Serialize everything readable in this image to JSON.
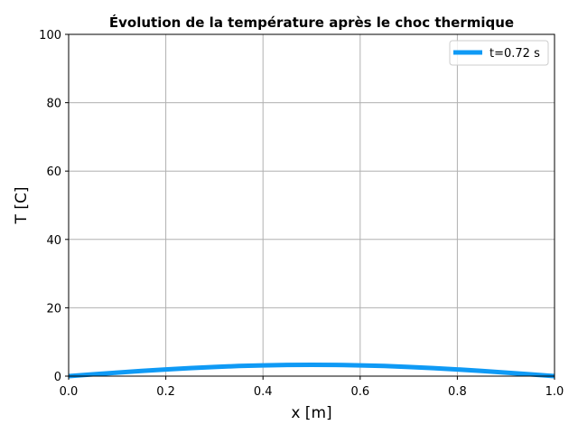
{
  "chart_data": {
    "type": "line",
    "title": "Évolution de la température après le choc thermique",
    "xlabel": "x [m]",
    "ylabel": "T [C]",
    "xlim": [
      0.0,
      1.0
    ],
    "ylim": [
      0,
      100
    ],
    "x_ticks": [
      "0.0",
      "0.2",
      "0.4",
      "0.6",
      "0.8",
      "1.0"
    ],
    "y_ticks": [
      "0",
      "20",
      "40",
      "60",
      "80",
      "100"
    ],
    "grid": true,
    "legend_position": "top-right",
    "series": [
      {
        "name": "t=0.72 s",
        "color": "#0f9af5",
        "x": [
          0.0,
          0.05,
          0.1,
          0.15,
          0.2,
          0.25,
          0.3,
          0.35,
          0.4,
          0.45,
          0.5,
          0.55,
          0.6,
          0.65,
          0.7,
          0.75,
          0.8,
          0.85,
          0.9,
          0.95,
          1.0
        ],
        "y": [
          0.0,
          0.52,
          1.03,
          1.51,
          1.96,
          2.35,
          2.69,
          2.96,
          3.15,
          3.27,
          3.3,
          3.27,
          3.15,
          2.96,
          2.69,
          2.35,
          1.96,
          1.51,
          1.03,
          0.52,
          0.0
        ]
      }
    ]
  }
}
